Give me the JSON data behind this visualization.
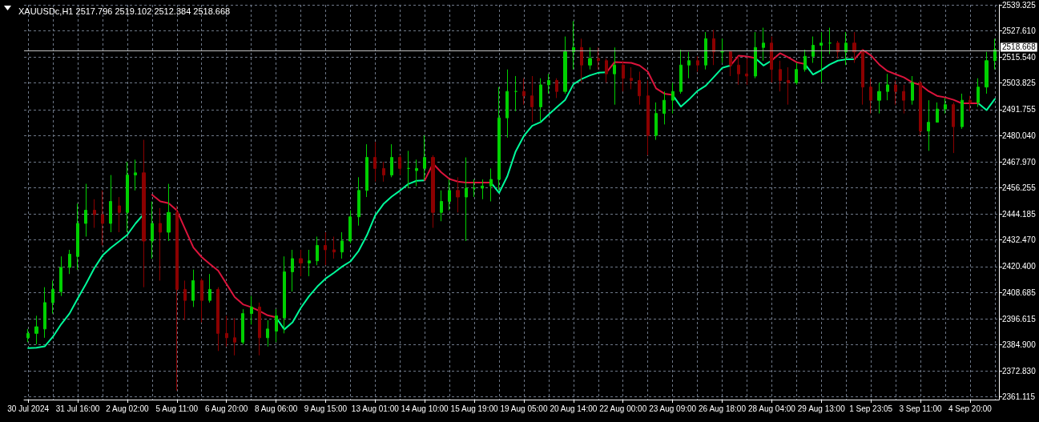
{
  "chart_data": {
    "type": "candlestick",
    "title": "XAUUSDc,H1 2517.796 2519.102 2512.384 2518.668",
    "categories": [
      "30 Jul 2024",
      null,
      null,
      null,
      null,
      null,
      "31 Jul 16:00",
      null,
      null,
      null,
      null,
      null,
      "2 Aug 02:00",
      null,
      null,
      null,
      null,
      null,
      "5 Aug 11:00",
      null,
      null,
      null,
      null,
      null,
      "6 Aug 20:00",
      null,
      null,
      null,
      null,
      null,
      "8 Aug 06:00",
      null,
      null,
      null,
      null,
      null,
      "9 Aug 15:00",
      null,
      null,
      null,
      null,
      null,
      "13 Aug 01:00",
      null,
      null,
      null,
      null,
      null,
      "14 Aug 10:00",
      null,
      null,
      null,
      null,
      null,
      "15 Aug 19:00",
      null,
      null,
      null,
      null,
      null,
      "19 Aug 05:00",
      null,
      null,
      null,
      null,
      null,
      "20 Aug 14:00",
      null,
      null,
      null,
      null,
      null,
      "22 Aug 00:00",
      null,
      null,
      null,
      null,
      null,
      "23 Aug 09:00",
      null,
      null,
      null,
      null,
      null,
      "26 Aug 18:00",
      null,
      null,
      null,
      null,
      null,
      "28 Aug 04:00",
      null,
      null,
      null,
      null,
      null,
      "29 Aug 13:00",
      null,
      null,
      null,
      null,
      null,
      "1 Sep 23:05",
      null,
      null,
      null,
      null,
      null,
      "3 Sep 11:00",
      null,
      null,
      null,
      null,
      null,
      "4 Sep 20:00",
      null,
      null,
      null
    ],
    "series": [
      {
        "ohlc": [
          [
            2388,
            2392,
            2386,
            2390
          ],
          [
            2390,
            2398,
            2385,
            2393
          ],
          [
            2392,
            2411,
            2388,
            2404
          ],
          [
            2404,
            2414,
            2399,
            2410
          ],
          [
            2409,
            2425,
            2407,
            2420
          ],
          [
            2420,
            2428,
            2417,
            2426
          ],
          [
            2425,
            2449,
            2419,
            2440
          ],
          [
            2440,
            2458,
            2434,
            2446
          ],
          [
            2446,
            2451,
            2438,
            2444
          ],
          [
            2444,
            2455,
            2430,
            2440
          ],
          [
            2440,
            2462,
            2436,
            2450
          ],
          [
            2448,
            2452,
            2436,
            2445
          ],
          [
            2445,
            2468,
            2436,
            2462
          ],
          [
            2462,
            2469,
            2455,
            2463
          ],
          [
            2463,
            2478,
            2411,
            2432
          ],
          [
            2432,
            2450,
            2424,
            2440
          ],
          [
            2440,
            2447,
            2414,
            2436
          ],
          [
            2436,
            2458,
            2432,
            2445
          ],
          [
            2445,
            2448,
            2364,
            2410
          ],
          [
            2410,
            2414,
            2396,
            2405
          ],
          [
            2405,
            2419,
            2402,
            2414
          ],
          [
            2414,
            2415,
            2395,
            2405
          ],
          [
            2405,
            2417,
            2404,
            2410
          ],
          [
            2410,
            2411,
            2382,
            2390
          ],
          [
            2390,
            2398,
            2384,
            2388
          ],
          [
            2388,
            2397,
            2380,
            2386
          ],
          [
            2386,
            2401,
            2385,
            2399
          ],
          [
            2399,
            2407,
            2394,
            2402
          ],
          [
            2402,
            2404,
            2380,
            2388
          ],
          [
            2388,
            2396,
            2384,
            2392
          ],
          [
            2391,
            2401,
            2386,
            2398
          ],
          [
            2397,
            2425,
            2390,
            2418
          ],
          [
            2418,
            2428,
            2409,
            2424
          ],
          [
            2424,
            2428,
            2416,
            2422
          ],
          [
            2422,
            2428,
            2416,
            2423
          ],
          [
            2423,
            2434,
            2421,
            2430
          ],
          [
            2430,
            2436,
            2421,
            2428
          ],
          [
            2428,
            2434,
            2424,
            2427
          ],
          [
            2427,
            2436,
            2424,
            2432
          ],
          [
            2432,
            2446,
            2431,
            2443
          ],
          [
            2443,
            2461,
            2439,
            2455
          ],
          [
            2455,
            2476,
            2452,
            2470
          ],
          [
            2470,
            2477,
            2459,
            2465
          ],
          [
            2465,
            2468,
            2459,
            2462
          ],
          [
            2462,
            2476,
            2461,
            2470
          ],
          [
            2470,
            2471,
            2462,
            2465
          ],
          [
            2465,
            2473,
            2456,
            2465
          ],
          [
            2464,
            2469,
            2457,
            2465
          ],
          [
            2465,
            2480,
            2460,
            2470
          ],
          [
            2470,
            2471,
            2438,
            2445
          ],
          [
            2445,
            2455,
            2441,
            2450
          ],
          [
            2450,
            2460,
            2446,
            2455
          ],
          [
            2455,
            2461,
            2445,
            2452
          ],
          [
            2452,
            2470,
            2432,
            2456
          ],
          [
            2456,
            2460,
            2452,
            2456
          ],
          [
            2456,
            2460,
            2451,
            2457
          ],
          [
            2457,
            2465,
            2450,
            2460
          ],
          [
            2460,
            2502,
            2455,
            2488
          ],
          [
            2488,
            2510,
            2479,
            2500
          ],
          [
            2500,
            2507,
            2491,
            2500
          ],
          [
            2500,
            2506,
            2494,
            2498
          ],
          [
            2498,
            2507,
            2486,
            2493
          ],
          [
            2493,
            2506,
            2486,
            2503
          ],
          [
            2503,
            2508,
            2499,
            2505
          ],
          [
            2505,
            2506,
            2497,
            2500
          ],
          [
            2500,
            2525,
            2499,
            2518
          ],
          [
            2518,
            2532,
            2510,
            2520
          ],
          [
            2520,
            2524,
            2504,
            2512
          ],
          [
            2512,
            2520,
            2510,
            2515
          ],
          [
            2515,
            2520,
            2510,
            2514
          ],
          [
            2514,
            2515,
            2504,
            2508
          ],
          [
            2508,
            2520,
            2494,
            2512
          ],
          [
            2512,
            2514,
            2500,
            2506
          ],
          [
            2506,
            2511,
            2501,
            2505
          ],
          [
            2505,
            2509,
            2494,
            2498
          ],
          [
            2498,
            2505,
            2471,
            2480
          ],
          [
            2480,
            2495,
            2478,
            2490
          ],
          [
            2490,
            2500,
            2485,
            2496
          ],
          [
            2496,
            2504,
            2490,
            2500
          ],
          [
            2500,
            2519,
            2499,
            2512
          ],
          [
            2512,
            2518,
            2506,
            2514
          ],
          [
            2514,
            2516,
            2509,
            2512
          ],
          [
            2512,
            2527,
            2510,
            2524
          ],
          [
            2524,
            2528,
            2512,
            2518
          ],
          [
            2518,
            2524,
            2513,
            2518
          ],
          [
            2518,
            2518,
            2507,
            2512
          ],
          [
            2512,
            2516,
            2503,
            2508
          ],
          [
            2508,
            2515,
            2503,
            2507
          ],
          [
            2507,
            2527,
            2506,
            2520
          ],
          [
            2520,
            2529,
            2514,
            2522
          ],
          [
            2522,
            2525,
            2504,
            2510
          ],
          [
            2510,
            2514,
            2500,
            2505
          ],
          [
            2505,
            2511,
            2494,
            2504
          ],
          [
            2504,
            2513,
            2503,
            2510
          ],
          [
            2510,
            2519,
            2509,
            2516
          ],
          [
            2516,
            2525,
            2513,
            2521
          ],
          [
            2521,
            2527,
            2504,
            2522
          ],
          [
            2522,
            2529,
            2517,
            2522
          ],
          [
            2522,
            2523,
            2515,
            2518
          ],
          [
            2518,
            2527,
            2512,
            2522
          ],
          [
            2522,
            2527,
            2513,
            2518
          ],
          [
            2518,
            2519,
            2494,
            2502
          ],
          [
            2502,
            2506,
            2490,
            2496
          ],
          [
            2496,
            2504,
            2490,
            2500
          ],
          [
            2500,
            2508,
            2496,
            2503
          ],
          [
            2503,
            2505,
            2494,
            2500
          ],
          [
            2500,
            2503,
            2490,
            2496
          ],
          [
            2496,
            2507,
            2494,
            2504
          ],
          [
            2504,
            2505,
            2480,
            2482
          ],
          [
            2482,
            2496,
            2473,
            2486
          ],
          [
            2486,
            2495,
            2486,
            2492
          ],
          [
            2492,
            2497,
            2490,
            2494
          ],
          [
            2494,
            2495,
            2472,
            2484
          ],
          [
            2484,
            2499,
            2483,
            2496
          ],
          [
            2496,
            2498,
            2491,
            2495
          ],
          [
            2495,
            2506,
            2493,
            2502
          ],
          [
            2502,
            2518,
            2499,
            2514
          ],
          [
            2514,
            2524,
            2510,
            2519
          ]
        ],
        "colors": [
          "#00d000",
          "#00d000",
          "#00d000",
          "#00d000",
          "#00d000",
          "#00d000",
          "#00d000",
          "#00d000",
          "#8b0000",
          "#8b0000",
          "#00d000",
          "#8b0000",
          "#00d000",
          "#00d000",
          "#8b0000",
          "#00d000",
          "#8b0000",
          "#00d000",
          "#8b0000",
          "#8b0000",
          "#00d000",
          "#8b0000",
          "#00d000",
          "#8b0000",
          "#8b0000",
          "#8b0000",
          "#00d000",
          "#00d000",
          "#8b0000",
          "#00d000",
          "#00d000",
          "#00d000",
          "#00d000",
          "#8b0000",
          "#00d000",
          "#00d000",
          "#8b0000",
          "#8b0000",
          "#00d000",
          "#00d000",
          "#00d000",
          "#00d000",
          "#8b0000",
          "#8b0000",
          "#00d000",
          "#8b0000",
          "#00d000",
          "#00d000",
          "#00d000",
          "#8b0000",
          "#00d000",
          "#00d000",
          "#8b0000",
          "#00d000",
          "#00d000",
          "#00d000",
          "#00d000",
          "#00d000",
          "#00d000",
          "#00d000",
          "#8b0000",
          "#8b0000",
          "#00d000",
          "#00d000",
          "#8b0000",
          "#00d000",
          "#00d000",
          "#8b0000",
          "#00d000",
          "#8b0000",
          "#8b0000",
          "#00d000",
          "#8b0000",
          "#8b0000",
          "#8b0000",
          "#8b0000",
          "#00d000",
          "#00d000",
          "#00d000",
          "#00d000",
          "#00d000",
          "#8b0000",
          "#00d000",
          "#8b0000",
          "#00d000",
          "#8b0000",
          "#8b0000",
          "#8b0000",
          "#00d000",
          "#00d000",
          "#8b0000",
          "#8b0000",
          "#8b0000",
          "#00d000",
          "#00d000",
          "#00d000",
          "#00d000",
          "#00d000",
          "#8b0000",
          "#00d000",
          "#8b0000",
          "#8b0000",
          "#8b0000",
          "#00d000",
          "#00d000",
          "#8b0000",
          "#8b0000",
          "#00d000",
          "#8b0000",
          "#00d000",
          "#00d000",
          "#00d000",
          "#8b0000",
          "#00d000",
          "#8b0000",
          "#00d000",
          "#00d000",
          "#00d000"
        ]
      },
      {
        "type": "line",
        "color": "#00fa9a",
        "values": [
          2383.3,
          2383.5,
          2384.1,
          2388.5,
          2394.2,
          2399,
          2405.9,
          2412.5,
          2419.6,
          2425.4,
          2428.9,
          2431.8,
          2434.8,
          2440,
          2444.3,
          null,
          null,
          null,
          null,
          null,
          null,
          null,
          null,
          null,
          null,
          null,
          null,
          null,
          null,
          null,
          2397.3,
          2391.8,
          2395,
          2401.6,
          2406.9,
          2411.3,
          2414.9,
          2417.5,
          2420.4,
          2422.7,
          2427.5,
          2434.6,
          2443.6,
          2448.8,
          2452.2,
          2454.9,
          2457.9,
          2459.4,
          2459.6,
          null,
          null,
          null,
          null,
          null,
          null,
          null,
          2458.6,
          2453.9,
          2461.5,
          2472.7,
          2479.8,
          2484.4,
          2486,
          2489.5,
          2492.9,
          2496.2,
          2503.3,
          2505.7,
          2507.3,
          2508.5,
          2508.7,
          null,
          null,
          null,
          null,
          null,
          null,
          null,
          2498.4,
          2493.1,
          2496.4,
          2500.2,
          2502.6,
          2506.6,
          2510.7,
          2511.8,
          null,
          null,
          2515.2,
          2511.8,
          2514.1,
          null,
          null,
          null,
          2512.5,
          2507.7,
          2509.7,
          2512.2,
          2514,
          2514.6,
          2514.6,
          null,
          null,
          null,
          null,
          null,
          null,
          null,
          null,
          null,
          null,
          null,
          null,
          null,
          null,
          2494.6,
          2491.5,
          2496.6
        ]
      },
      {
        "type": "line",
        "color": "#dc143c",
        "values": [
          null,
          null,
          null,
          null,
          null,
          null,
          null,
          null,
          null,
          null,
          null,
          null,
          null,
          null,
          null,
          2453,
          2450,
          2449.2,
          2445.9,
          2437.4,
          2429,
          2424.7,
          2421.5,
          2418.5,
          2412.5,
          2406.5,
          2403.2,
          2401.9,
          2400.2,
          2398.2,
          2397.3,
          null,
          null,
          null,
          null,
          null,
          null,
          null,
          null,
          null,
          null,
          null,
          null,
          null,
          null,
          null,
          null,
          null,
          2459.6,
          2467.2,
          2463.2,
          2460.2,
          2459,
          2458.6,
          2458.6,
          2458.6,
          2458.6,
          null,
          null,
          null,
          null,
          null,
          null,
          null,
          null,
          null,
          null,
          null,
          null,
          null,
          2508.7,
          2513.4,
          2513.2,
          2513,
          2511.8,
          2509,
          2501.4,
          2499,
          2498.4,
          null,
          null,
          null,
          null,
          null,
          null,
          2511.8,
          2516.3,
          2515.9,
          2515.2,
          null,
          2514.1,
          2517.4,
          2515.5,
          2513.3,
          2512.5,
          null,
          null,
          null,
          null,
          null,
          2514.6,
          2518.9,
          2516.4,
          2512.3,
          2509.3,
          2507.8,
          2506.4,
          2504.1,
          2503,
          2500.1,
          2498,
          2497.3,
          2496.2,
          2494.6,
          2494.6,
          2494.6,
          null,
          null
        ]
      }
    ],
    "ylim": [
      2359.9,
      2539.4
    ],
    "yticks": [
      2361.115,
      {
        "value": 2372.83,
        "label": "2372.830"
      },
      {
        "value": 2384.9,
        "label": "2384.900"
      },
      2396.615,
      2408.685,
      {
        "value": 2420.4,
        "label": "2420.400"
      },
      {
        "value": 2432.47,
        "label": "2432.470"
      },
      2444.185,
      2456.255,
      {
        "value": 2467.97,
        "label": "2467.970"
      },
      {
        "value": 2480.04,
        "label": "2480.040"
      },
      2491.755,
      2503.825,
      {
        "value": 2515.54,
        "label": "2515.540"
      },
      {
        "value": 2527.61,
        "label": "2527.610"
      },
      2539.325
    ],
    "grid": true,
    "ref_lines": [
      {
        "axis": "y",
        "value": 2518.668,
        "label": "2518.668",
        "color": "#c0c0c0"
      }
    ]
  }
}
